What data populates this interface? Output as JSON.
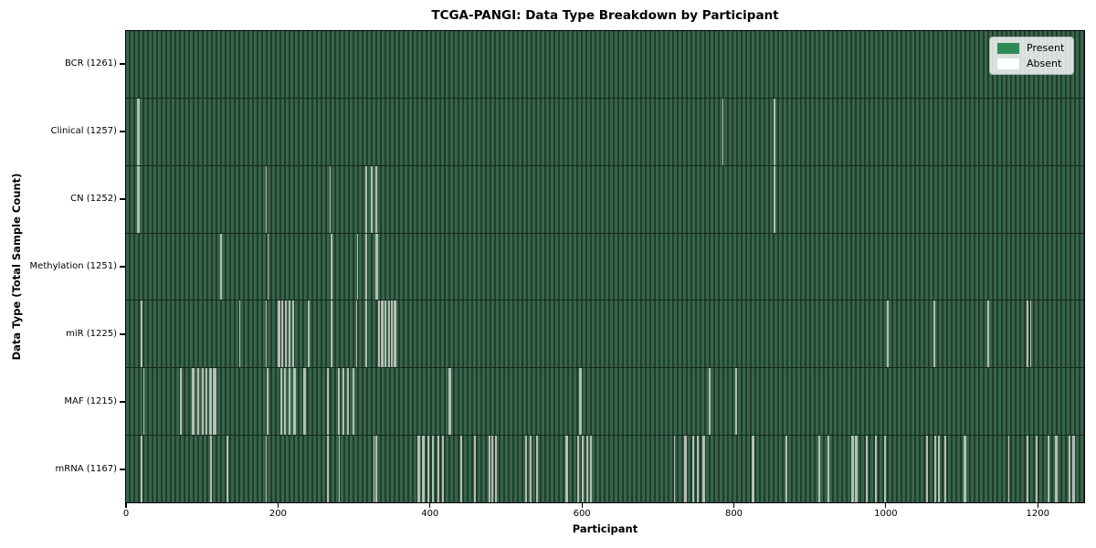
{
  "title": "TCGA-PANGI: Data Type Breakdown by Participant",
  "x_axis": {
    "label": "Participant",
    "ticks": [
      0,
      200,
      400,
      600,
      800,
      1000,
      1200
    ],
    "max": 1261
  },
  "y_axis": {
    "label": "Data Type (Total Sample Count)"
  },
  "legend": {
    "position": "upper right",
    "items": [
      {
        "label": "Present",
        "color": "#2e8b57"
      },
      {
        "label": "Absent",
        "color": "#ffffff"
      }
    ]
  },
  "colors": {
    "present": "#2e8b57",
    "absent": "#ffffff",
    "stripe_light": "#37654b",
    "stripe_dark": "#203d2b",
    "row_divider": "#14281c",
    "gap_line": "#b6bdb6",
    "spine": "#000000"
  },
  "chart_data": {
    "type": "heatmap",
    "title": "TCGA-PANGI: Data Type Breakdown by Participant",
    "xlabel": "Participant",
    "ylabel": "Data Type (Total Sample Count)",
    "legend": [
      "Present",
      "Absent"
    ],
    "legend_position": "upper right",
    "n_participants": 1261,
    "xlim": [
      0,
      1261
    ],
    "x_ticks": [
      0,
      200,
      400,
      600,
      800,
      1000,
      1200
    ],
    "grid": false,
    "rows": [
      {
        "name": "BCR",
        "label": "BCR (1261)",
        "total": 1261,
        "absent_count": 0,
        "absent_participants": []
      },
      {
        "name": "Clinical",
        "label": "Clinical (1257)",
        "total": 1257,
        "absent_count": 4,
        "absent_participants": [
          15,
          16,
          785,
          853
        ]
      },
      {
        "name": "CN",
        "label": "CN (1252)",
        "total": 1252,
        "absent_count": 9,
        "absent_participants": [
          15,
          16,
          184,
          268,
          315,
          316,
          323,
          329,
          853
        ]
      },
      {
        "name": "Methylation",
        "label": "Methylation (1251)",
        "total": 1251,
        "absent_count": 10,
        "absent_participants": [
          124,
          125,
          186,
          269,
          270,
          304,
          315,
          316,
          329,
          330
        ]
      },
      {
        "name": "miR",
        "label": "miR (1225)",
        "total": 1225,
        "absent_count": 36,
        "absent_participants": [
          20,
          149,
          184,
          200,
          201,
          204,
          205,
          209,
          210,
          214,
          215,
          219,
          220,
          240,
          269,
          270,
          303,
          315,
          316,
          332,
          333,
          336,
          337,
          340,
          341,
          345,
          346,
          349,
          353,
          354,
          1001,
          1002,
          1063,
          1134,
          1186,
          1190
        ]
      },
      {
        "name": "MAF",
        "label": "MAF (1215)",
        "total": 1215,
        "absent_count": 46,
        "absent_participants": [
          23,
          71,
          72,
          87,
          88,
          94,
          95,
          100,
          101,
          105,
          106,
          110,
          111,
          115,
          116,
          117,
          185,
          186,
          203,
          204,
          208,
          209,
          214,
          215,
          220,
          221,
          222,
          234,
          235,
          265,
          279,
          280,
          285,
          286,
          291,
          292,
          298,
          299,
          425,
          426,
          597,
          598,
          767,
          768,
          802,
          803
        ]
      },
      {
        "name": "mRNA",
        "label": "mRNA (1167)",
        "total": 1167,
        "absent_count": 94,
        "absent_participants": [
          20,
          111,
          133,
          184,
          265,
          280,
          326,
          329,
          384,
          385,
          390,
          391,
          397,
          398,
          403,
          404,
          410,
          411,
          416,
          417,
          440,
          441,
          458,
          459,
          477,
          478,
          481,
          482,
          486,
          487,
          525,
          526,
          531,
          532,
          540,
          541,
          579,
          580,
          594,
          595,
          600,
          601,
          606,
          607,
          611,
          612,
          721,
          735,
          736,
          745,
          746,
          751,
          752,
          759,
          760,
          824,
          825,
          868,
          869,
          912,
          924,
          955,
          956,
          960,
          961,
          974,
          975,
          986,
          987,
          998,
          999,
          1053,
          1054,
          1064,
          1065,
          1069,
          1070,
          1077,
          1078,
          1103,
          1104,
          1161,
          1185,
          1186,
          1197,
          1198,
          1213,
          1214,
          1223,
          1224,
          1241,
          1242,
          1246,
          1247
        ]
      }
    ]
  }
}
